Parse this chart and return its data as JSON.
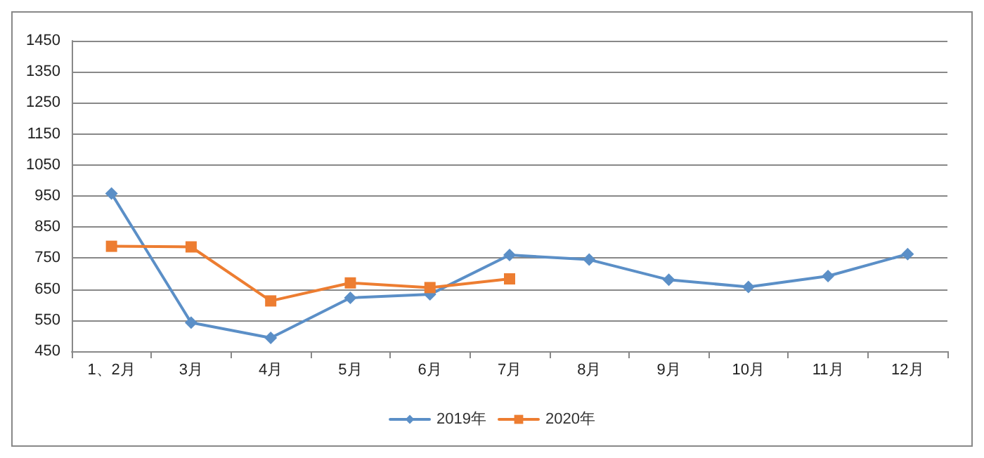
{
  "chart_data": {
    "type": "line",
    "categories": [
      "1、2月",
      "3月",
      "4月",
      "5月",
      "6月",
      "7月",
      "8月",
      "9月",
      "10月",
      "11月",
      "12月"
    ],
    "series": [
      {
        "name": "2019年",
        "color": "#5b8fc7",
        "marker": "diamond",
        "values": [
          958,
          542,
          493,
          622,
          633,
          760,
          745,
          680,
          657,
          692,
          763
        ]
      },
      {
        "name": "2020年",
        "color": "#ed7d31",
        "marker": "square",
        "values": [
          788,
          786,
          612,
          670,
          655,
          683,
          null,
          null,
          null,
          null,
          null
        ]
      }
    ],
    "ylim": [
      450,
      1450
    ],
    "yticks": [
      450,
      550,
      650,
      750,
      850,
      950,
      1050,
      1150,
      1250,
      1350,
      1450
    ],
    "grid": "y",
    "legend": "bottom",
    "line_style": "solid"
  }
}
